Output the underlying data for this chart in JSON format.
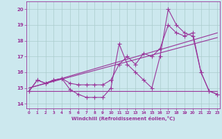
{
  "x": [
    0,
    1,
    2,
    3,
    4,
    5,
    6,
    7,
    8,
    9,
    10,
    11,
    12,
    13,
    14,
    15,
    16,
    17,
    18,
    19,
    20,
    21,
    22,
    23
  ],
  "line_main": [
    14.8,
    15.5,
    15.3,
    15.5,
    15.6,
    14.9,
    14.6,
    14.4,
    14.4,
    14.4,
    15.0,
    17.8,
    16.5,
    16.0,
    15.5,
    15.0,
    17.0,
    20.0,
    19.0,
    18.5,
    18.3,
    16.0,
    14.8,
    14.6
  ],
  "line_smooth": [
    14.8,
    15.5,
    15.3,
    15.5,
    15.6,
    15.3,
    15.2,
    15.2,
    15.2,
    15.2,
    15.5,
    16.5,
    17.0,
    16.5,
    17.2,
    17.0,
    17.5,
    19.0,
    18.5,
    18.3,
    18.5,
    16.0,
    14.8,
    14.6
  ],
  "flat_line_x": [
    0,
    23
  ],
  "flat_line_y": [
    14.8,
    14.8
  ],
  "trend1_x": [
    0,
    23
  ],
  "trend1_y": [
    15.0,
    18.5
  ],
  "trend2_x": [
    0,
    23
  ],
  "trend2_y": [
    15.0,
    18.2
  ],
  "ylabel_ticks": [
    14,
    15,
    16,
    17,
    18,
    19,
    20
  ],
  "xlabel_ticks": [
    0,
    1,
    2,
    3,
    4,
    5,
    6,
    7,
    8,
    9,
    10,
    11,
    12,
    13,
    14,
    15,
    16,
    17,
    18,
    19,
    20,
    21,
    22,
    23
  ],
  "xlabel": "Windchill (Refroidissement éolien,°C)",
  "line_color": "#993399",
  "bg_color": "#cce8ee",
  "grid_color": "#aacccc",
  "ylim": [
    13.7,
    20.5
  ],
  "xlim": [
    -0.3,
    23.3
  ]
}
